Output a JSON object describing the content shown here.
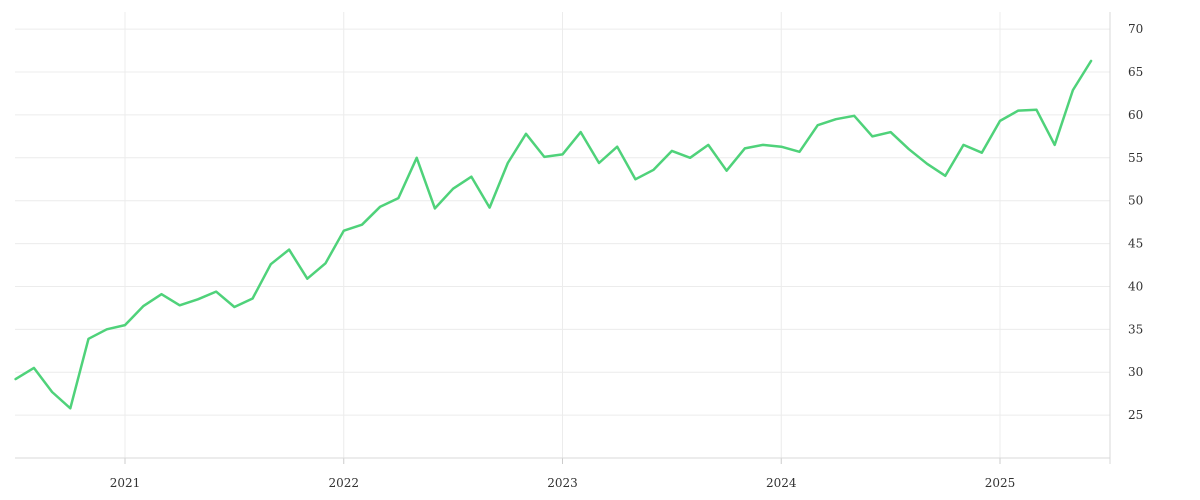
{
  "chart_data": {
    "type": "line",
    "title": "",
    "xlabel": "",
    "ylabel": "",
    "grid": true,
    "legend": "none",
    "y_axis_side": "right",
    "ylim": [
      20,
      72
    ],
    "yticks": [
      25,
      30,
      35,
      40,
      45,
      50,
      55,
      60,
      65,
      70
    ],
    "xticks": [
      "2021",
      "2022",
      "2023",
      "2024",
      "2025"
    ],
    "colors": {
      "series": "#4fd27a",
      "grid": "#ececec",
      "axis": "#d9d9d9",
      "text": "#333333"
    },
    "series": [
      {
        "x": [
          "2020-07",
          "2020-08",
          "2020-09",
          "2020-10",
          "2020-11",
          "2020-12",
          "2021-01",
          "2021-02",
          "2021-03",
          "2021-04",
          "2021-05",
          "2021-06",
          "2021-07",
          "2021-08",
          "2021-09",
          "2021-10",
          "2021-11",
          "2021-12",
          "2022-01",
          "2022-02",
          "2022-03",
          "2022-04",
          "2022-05",
          "2022-06",
          "2022-07",
          "2022-08",
          "2022-09",
          "2022-10",
          "2022-11",
          "2022-12",
          "2023-01",
          "2023-02",
          "2023-03",
          "2023-04",
          "2023-05",
          "2023-06",
          "2023-07",
          "2023-08",
          "2023-09",
          "2023-10",
          "2023-11",
          "2023-12",
          "2024-01",
          "2024-02",
          "2024-03",
          "2024-04",
          "2024-05",
          "2024-06",
          "2024-07",
          "2024-08",
          "2024-09",
          "2024-10",
          "2024-11",
          "2024-12",
          "2025-01",
          "2025-02",
          "2025-03",
          "2025-04",
          "2025-05",
          "2025-06"
        ],
        "values": [
          29.2,
          30.5,
          27.7,
          25.8,
          33.9,
          35.0,
          35.5,
          37.7,
          39.1,
          37.8,
          38.5,
          39.4,
          37.6,
          38.6,
          42.6,
          44.3,
          40.9,
          42.7,
          46.5,
          47.2,
          49.3,
          50.3,
          55.0,
          49.1,
          51.4,
          52.8,
          49.2,
          54.4,
          57.8,
          55.1,
          55.4,
          58.0,
          54.4,
          56.3,
          52.5,
          53.6,
          55.8,
          55.0,
          56.5,
          53.5,
          56.1,
          56.5,
          56.3,
          55.7,
          58.8,
          59.5,
          59.9,
          57.5,
          58.0,
          56.0,
          54.3,
          52.9,
          56.5,
          55.6,
          59.3,
          60.5,
          60.6,
          56.5,
          62.9,
          66.3
        ]
      }
    ]
  }
}
